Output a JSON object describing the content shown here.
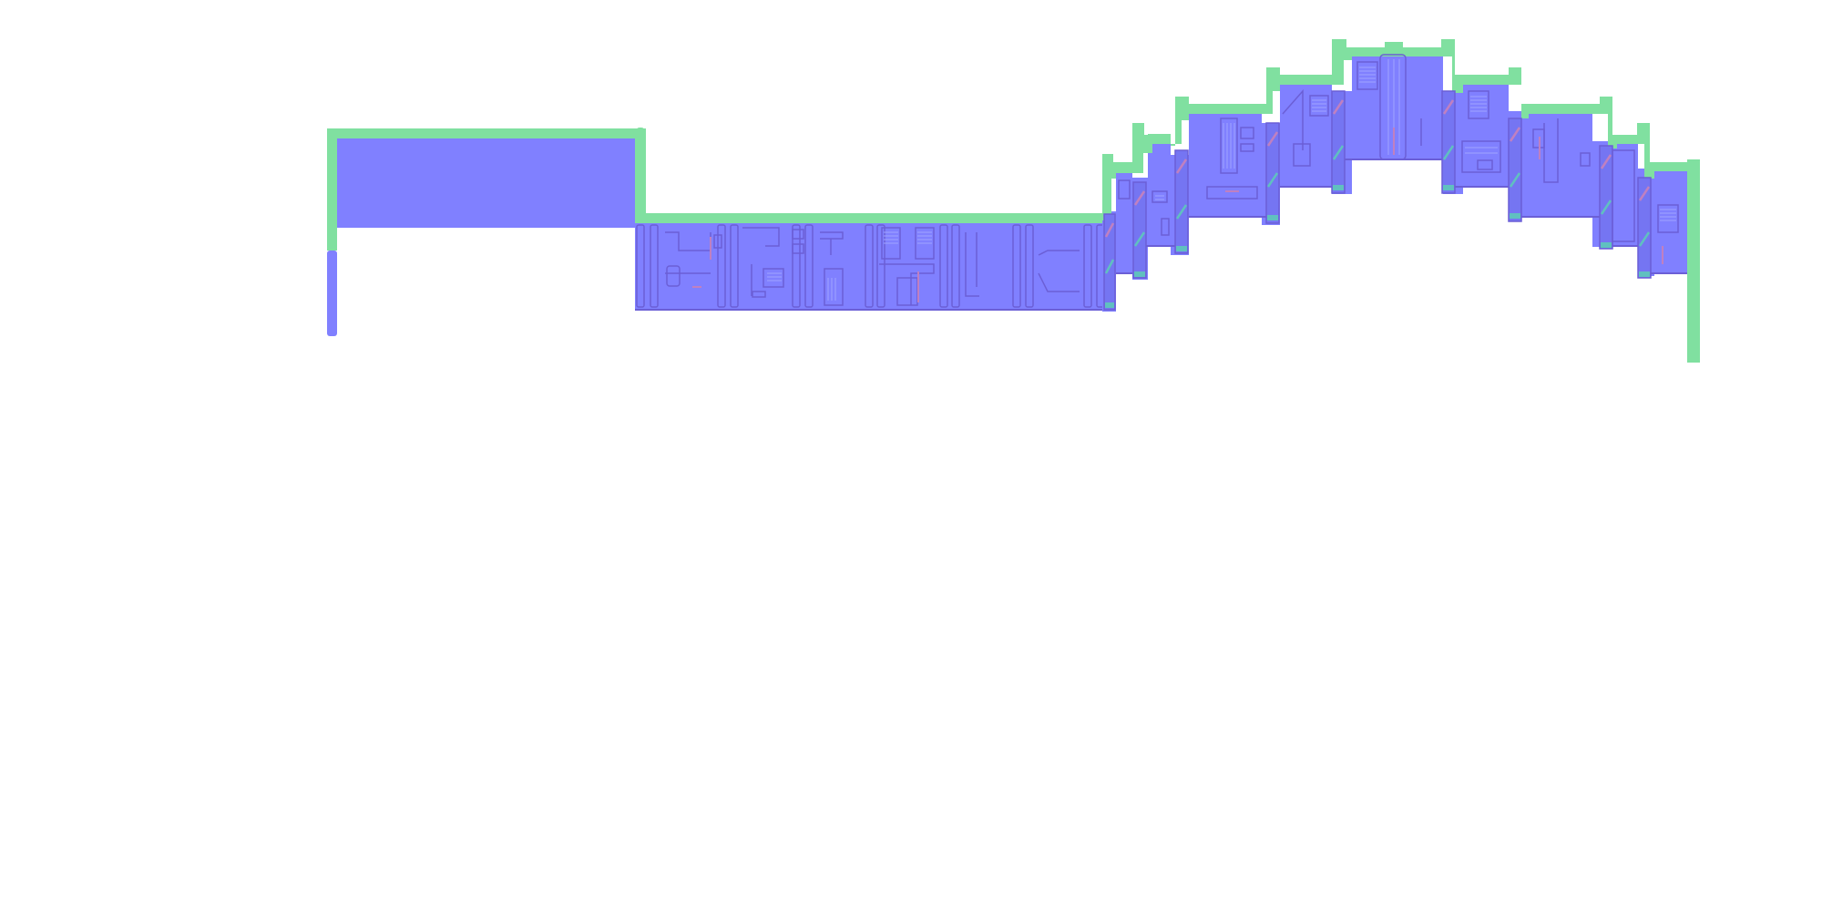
{
  "canvas": {
    "title": "",
    "background": "#ffffff"
  },
  "palette": {
    "surface": "#8080ff",
    "surface_shade": "#7575f2",
    "top_edge": "#80e0a0",
    "panel_line": "#6b5fd6",
    "panel_highlight": "#a0a4ff",
    "trim_pink": "#c080c0",
    "trim_teal": "#60c0c0"
  },
  "level_segments": [
    {
      "id": "plateau-left",
      "kind": "blank-block"
    },
    {
      "id": "corridor",
      "kind": "detailed-panels"
    },
    {
      "id": "arch",
      "kind": "stepped-arch"
    },
    {
      "id": "end-drop",
      "kind": "edge"
    }
  ]
}
